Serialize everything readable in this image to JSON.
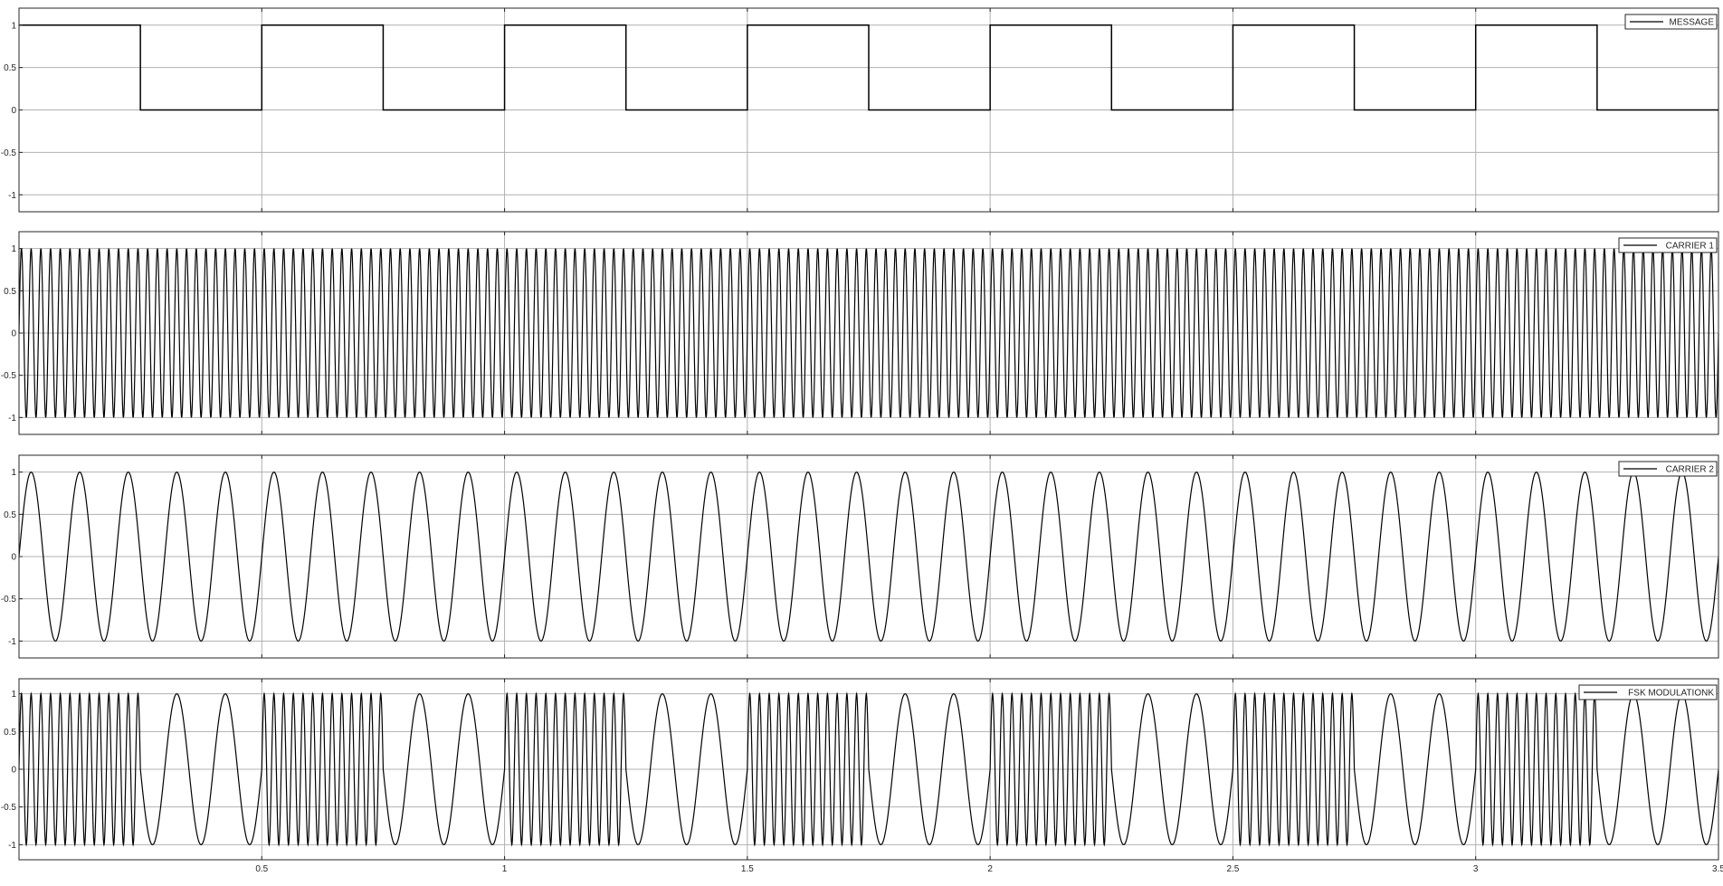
{
  "colors": {
    "line": "#000000",
    "grid": "#b0b0b0",
    "axes": "#262626",
    "background": "#ffffff"
  },
  "chart_data": [
    {
      "type": "line",
      "series": [
        {
          "name": "MESSAGE",
          "signal": "square",
          "period": 0.5,
          "duty": 0.5,
          "high": 1,
          "low": 0
        }
      ],
      "xlim": [
        0,
        3.5
      ],
      "ylim": [
        -1.2,
        1.2
      ],
      "yticks": [
        1,
        0.5,
        0,
        -0.5,
        -1
      ],
      "ytick_labels": [
        "1",
        "0.5",
        "0",
        "-0.5",
        "-1"
      ],
      "xticks": [
        0.5,
        1,
        1.5,
        2,
        2.5,
        3,
        3.5
      ],
      "xtick_labels": [],
      "legend_position": "top-right",
      "grid": true
    },
    {
      "type": "line",
      "series": [
        {
          "name": "CARRIER 1",
          "signal": "sine",
          "frequency_hz": 50,
          "amplitude": 1
        }
      ],
      "xlim": [
        0,
        3.5
      ],
      "ylim": [
        -1.2,
        1.2
      ],
      "yticks": [
        1,
        0.5,
        0,
        -0.5,
        -1
      ],
      "ytick_labels": [
        "1",
        "0.5",
        "0",
        "-0.5",
        "-1"
      ],
      "xticks": [
        0.5,
        1,
        1.5,
        2,
        2.5,
        3,
        3.5
      ],
      "xtick_labels": [],
      "legend_position": "top-right",
      "grid": true
    },
    {
      "type": "line",
      "series": [
        {
          "name": "CARRIER 2",
          "signal": "sine",
          "frequency_hz": 10,
          "amplitude": 1
        }
      ],
      "xlim": [
        0,
        3.5
      ],
      "ylim": [
        -1.2,
        1.2
      ],
      "yticks": [
        1,
        0.5,
        0,
        -0.5,
        -1
      ],
      "ytick_labels": [
        "1",
        "0.5",
        "0",
        "-0.5",
        "-1"
      ],
      "xticks": [
        0.5,
        1,
        1.5,
        2,
        2.5,
        3,
        3.5
      ],
      "xtick_labels": [],
      "legend_position": "top-right",
      "grid": true
    },
    {
      "type": "line",
      "series": [
        {
          "name": "FSK MODULATIONK",
          "signal": "fsk",
          "mark_frequency_hz": 50,
          "space_frequency_hz": 10,
          "amplitude": 1,
          "bit_period": 0.25
        }
      ],
      "xlim": [
        0,
        3.5
      ],
      "ylim": [
        -1.2,
        1.2
      ],
      "yticks": [
        1,
        0.5,
        0,
        -0.5,
        -1
      ],
      "ytick_labels": [
        "1",
        "0.5",
        "0",
        "-0.5",
        "-1"
      ],
      "xticks": [
        0.5,
        1,
        1.5,
        2,
        2.5,
        3,
        3.5
      ],
      "xtick_labels": [
        "0.5",
        "1",
        "1.5",
        "2",
        "2.5",
        "3",
        "3.5"
      ],
      "legend_position": "top-right",
      "grid": true
    }
  ]
}
